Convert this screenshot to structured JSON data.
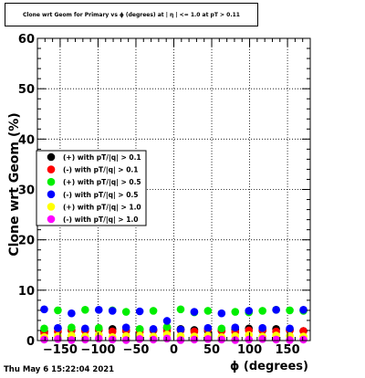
{
  "chart_data": {
    "type": "scatter",
    "title": "Clone wrt Geom for Primary vs ϕ (degrees) at | η | <= 1.0 at pT > 0.11",
    "xlabel": "ϕ (degrees)",
    "ylabel": "Clone wrt  Geom (%)",
    "xlim": [
      -180,
      180
    ],
    "ylim": [
      0,
      60
    ],
    "xticks": [
      -150,
      -100,
      -50,
      0,
      50,
      100,
      150
    ],
    "xtick_labels": [
      "−150",
      "−100",
      "−50",
      "0",
      "50",
      "100",
      "150"
    ],
    "yticks": [
      0,
      10,
      20,
      30,
      40,
      50,
      60
    ],
    "grid": true,
    "legend_position": "middle-left",
    "x": [
      -171,
      -153,
      -135,
      -117,
      -99,
      -81,
      -63,
      -45,
      -27,
      -9,
      9,
      27,
      45,
      63,
      81,
      99,
      117,
      135,
      153,
      171
    ],
    "series": [
      {
        "name": "(+) with pT/|q| > 0.1",
        "color": "#000000",
        "values": [
          1.8,
          2.4,
          2.0,
          2.2,
          2.1,
          2.3,
          1.9,
          2.2,
          2.0,
          2.5,
          2.3,
          2.1,
          1.9,
          2.0,
          2.2,
          2.4,
          2.0,
          2.3,
          2.1,
          1.9
        ]
      },
      {
        "name": "(-) with pT/|q| > 0.1",
        "color": "#ff0000",
        "values": [
          1.5,
          1.8,
          2.1,
          1.9,
          2.2,
          1.8,
          2.0,
          1.7,
          2.1,
          1.9,
          2.0,
          1.8,
          2.2,
          1.9,
          1.7,
          2.0,
          2.1,
          1.8,
          2.0,
          1.9
        ]
      },
      {
        "name": "(+) with pT/|q| > 0.5",
        "color": "#00ee00",
        "values": [
          2.4,
          6.0,
          2.6,
          6.1,
          2.5,
          6.0,
          5.7,
          2.3,
          5.9,
          2.7,
          6.2,
          5.6,
          5.9,
          2.4,
          5.7,
          5.6,
          5.9,
          6.1,
          6.0,
          5.9
        ]
      },
      {
        "name": "(-) with pT/|q| > 0.5",
        "color": "#0000ff",
        "values": [
          6.2,
          2.5,
          5.4,
          2.4,
          6.1,
          5.9,
          2.6,
          5.8,
          2.3,
          3.9,
          2.2,
          5.7,
          2.5,
          5.4,
          2.6,
          5.9,
          2.5,
          6.1,
          2.4,
          6.1
        ]
      },
      {
        "name": "(+) with pT/|q| > 1.0",
        "color": "#ffff00",
        "values": [
          0.7,
          0.9,
          1.0,
          0.8,
          1.1,
          0.7,
          0.9,
          1.0,
          0.8,
          1.2,
          0.9,
          0.8,
          1.0,
          0.7,
          0.9,
          1.1,
          0.8,
          1.0,
          0.9,
          0.8
        ]
      },
      {
        "name": "(-) with pT/|q| > 1.0",
        "color": "#ff00ff",
        "values": [
          0.2,
          0.3,
          0.1,
          0.2,
          0.4,
          0.2,
          0.1,
          0.3,
          0.2,
          0.4,
          0.1,
          0.2,
          0.3,
          0.2,
          0.1,
          0.2,
          0.3,
          0.2,
          0.1,
          0.2
        ]
      }
    ]
  },
  "footer": {
    "timestamp": "Thu May  6 15:22:04 2021"
  }
}
